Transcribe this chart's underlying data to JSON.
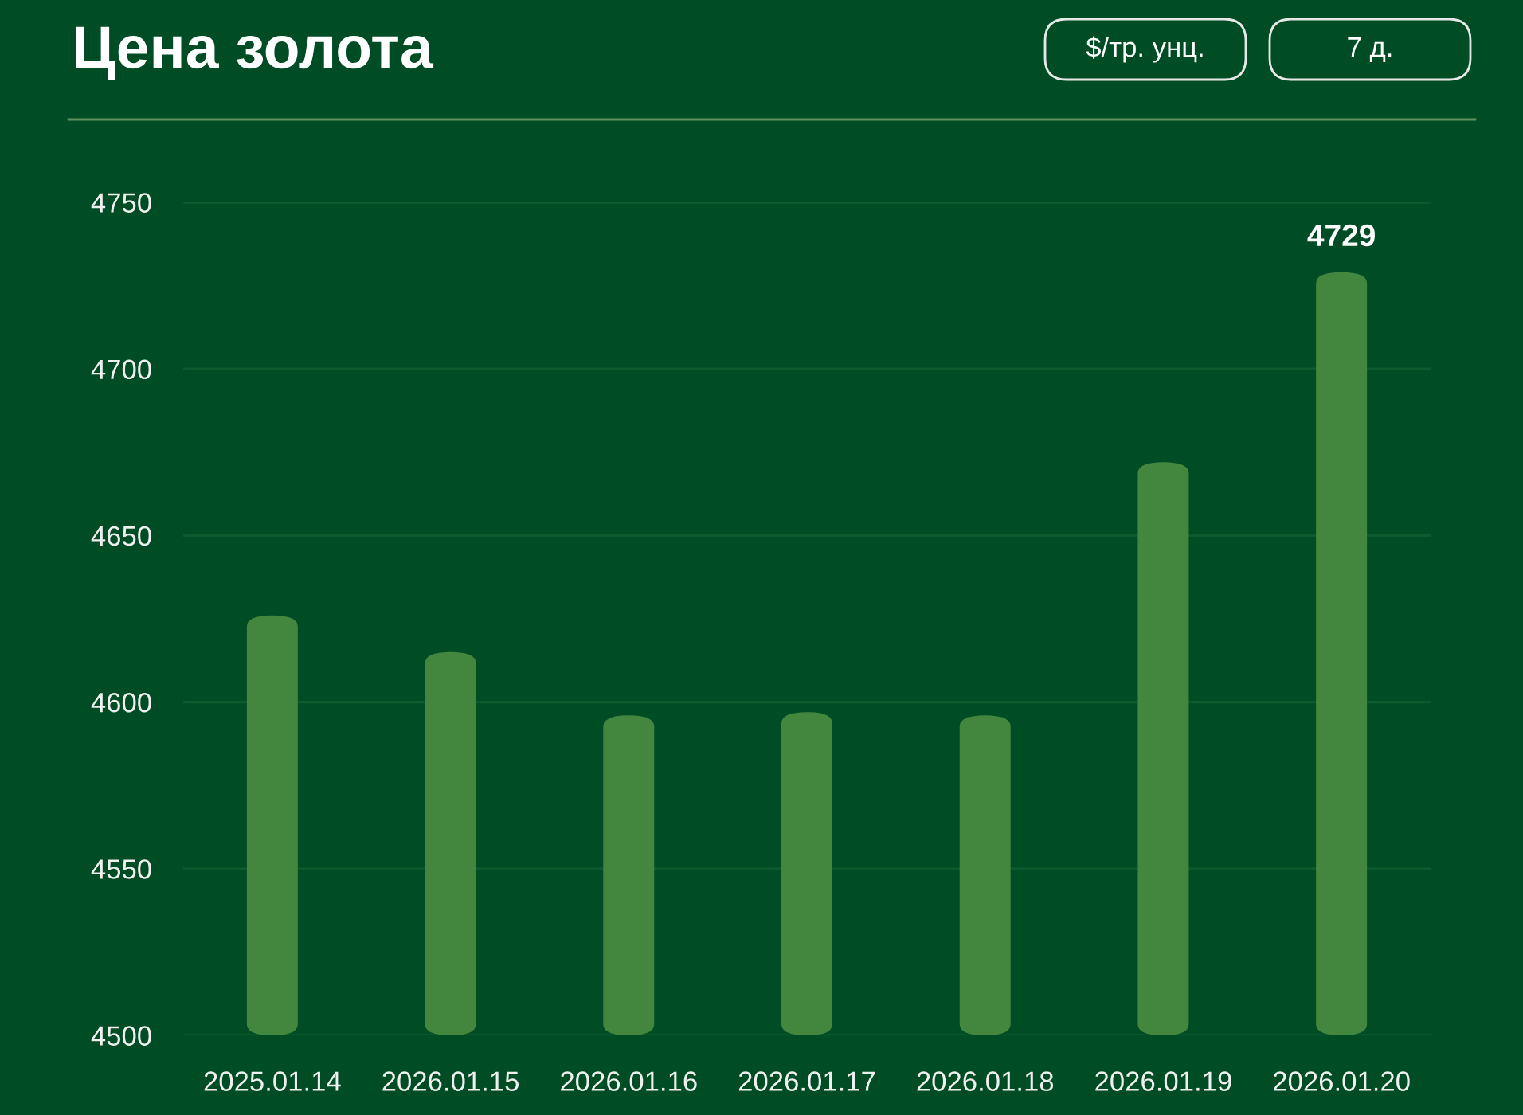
{
  "chart_data": {
    "type": "bar",
    "title": "Цена золота",
    "annotations": [
      "$/тр. унц.",
      "7 д."
    ],
    "categories": [
      "2025.01.14",
      "2026.01.15",
      "2026.01.16",
      "2026.01.17",
      "2026.01.18",
      "2026.01.19",
      "2026.01.20"
    ],
    "values": [
      4626,
      4615,
      4596,
      4597,
      4596,
      4672,
      4729
    ],
    "color": "#43873f",
    "value_labels": [
      null,
      null,
      null,
      null,
      null,
      null,
      "4729"
    ],
    "ylim": [
      4500,
      4750
    ],
    "yticks": [
      4500,
      4550,
      4600,
      4650,
      4700,
      4750
    ],
    "grid": "y"
  }
}
